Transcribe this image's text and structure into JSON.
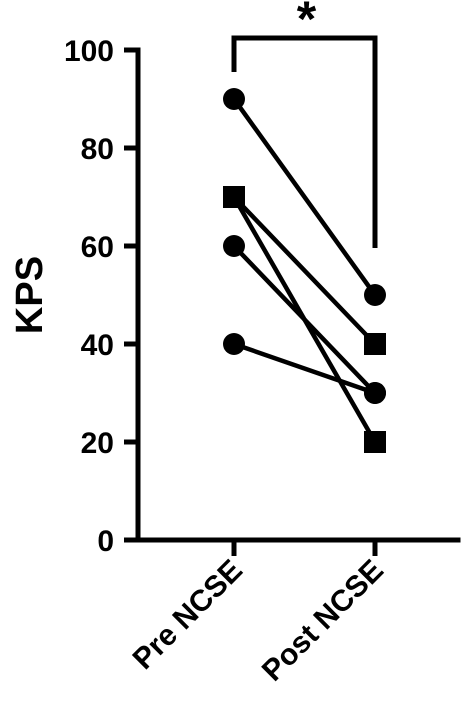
{
  "chart_data": {
    "type": "scatter",
    "ylabel": "KPS",
    "ylim": [
      0,
      100
    ],
    "yticks": [
      "0",
      "20",
      "40",
      "60",
      "80",
      "100"
    ],
    "categories": [
      "Pre NCSE",
      "Post NCSE"
    ],
    "paired_lines": true,
    "significance": {
      "label": "*",
      "between": [
        "Pre NCSE",
        "Post NCSE"
      ]
    },
    "series": [
      {
        "marker": "circle",
        "values": [
          90,
          50
        ]
      },
      {
        "marker": "circle",
        "values": [
          60,
          30
        ]
      },
      {
        "marker": "circle",
        "values": [
          40,
          30
        ]
      },
      {
        "marker": "square",
        "values": [
          70,
          40
        ]
      },
      {
        "marker": "square",
        "values": [
          70,
          20
        ]
      }
    ]
  }
}
